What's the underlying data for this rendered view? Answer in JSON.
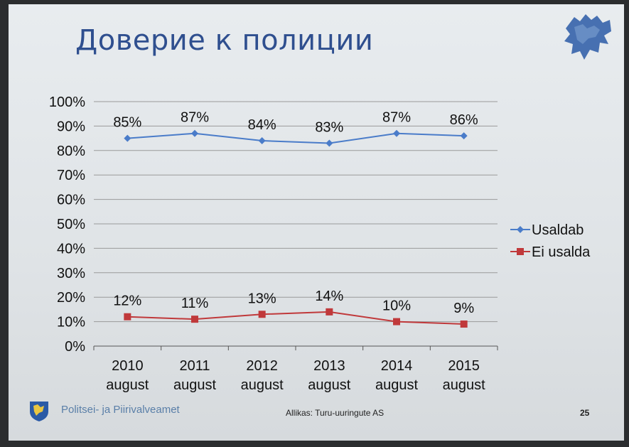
{
  "slide": {
    "title": "Доверие к полиции",
    "organization": "Politsei- ja Piirivalveamet",
    "source": "Allikas: Turu-uuringute AS",
    "page_number": "25"
  },
  "colors": {
    "title": "#2f4f8f",
    "series_trust": "#4a7cc9",
    "series_distrust": "#c0393b",
    "grid": "#9a9a9a"
  },
  "chart_data": {
    "type": "line",
    "categories": [
      "2010\naugust",
      "2011\naugust",
      "2012\naugust",
      "2013\naugust",
      "2014\naugust",
      "2015\naugust"
    ],
    "yticks": [
      "0%",
      "10%",
      "20%",
      "30%",
      "40%",
      "50%",
      "60%",
      "70%",
      "80%",
      "90%",
      "100%"
    ],
    "ylim": [
      0,
      100
    ],
    "grid": true,
    "legend_position": "right",
    "series": [
      {
        "name": "Usaldab",
        "values": [
          85,
          87,
          84,
          83,
          87,
          86
        ],
        "labels": [
          "85%",
          "87%",
          "84%",
          "83%",
          "87%",
          "86%"
        ],
        "marker": "diamond"
      },
      {
        "name": "Ei usalda",
        "values": [
          12,
          11,
          13,
          14,
          10,
          9
        ],
        "labels": [
          "12%",
          "11%",
          "13%",
          "14%",
          "10%",
          "9%"
        ],
        "marker": "square"
      }
    ]
  }
}
